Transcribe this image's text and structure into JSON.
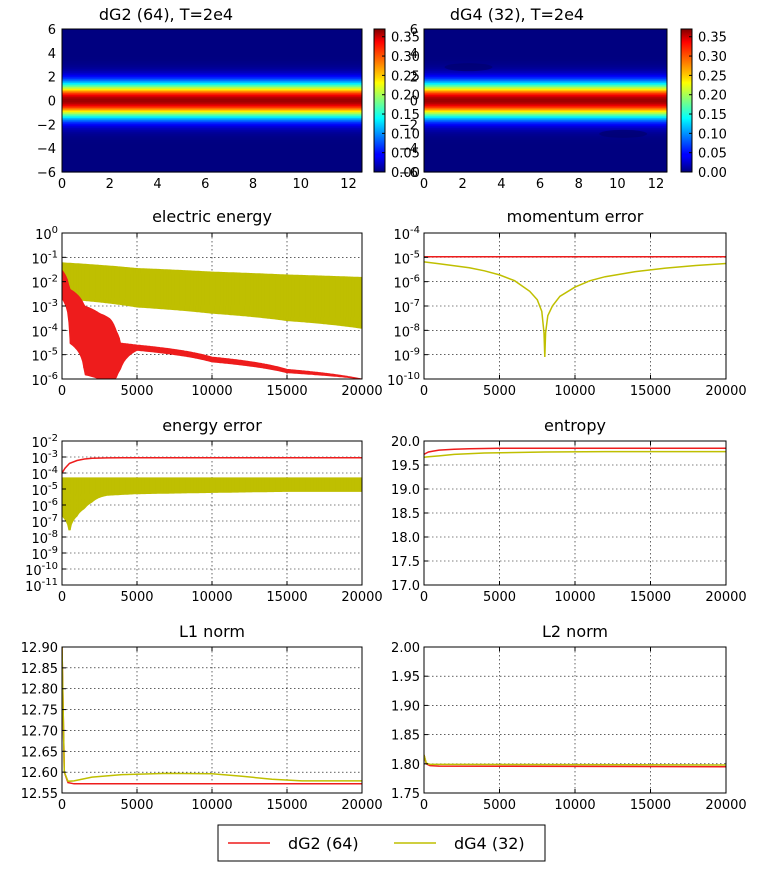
{
  "legend": [
    {
      "label": "dG2 (64)",
      "color": "#ee1c1c"
    },
    {
      "label": "dG4 (32)",
      "color": "#bfbf00"
    }
  ],
  "chart_data": [
    {
      "type": "heatmap",
      "title": "dG2 (64), T=2e4",
      "xlim": [
        0,
        12.566
      ],
      "ylim": [
        -6,
        6
      ],
      "xticks": [
        "0",
        "2",
        "4",
        "6",
        "8",
        "10",
        "12"
      ],
      "yticks": [
        "6",
        "4",
        "2",
        "0",
        "−2",
        "−4",
        "−6"
      ],
      "colorbar_range": [
        0,
        0.37
      ],
      "colorbar_ticks": [
        "0.35",
        "0.30",
        "0.25",
        "0.20",
        "0.15",
        "0.10",
        "0.05",
        "0.00"
      ],
      "peak_value": 0.36,
      "profile_width": 1.0,
      "holes": []
    },
    {
      "type": "heatmap",
      "title": "dG4 (32), T=2e4",
      "xlim": [
        0,
        12.566
      ],
      "ylim": [
        -6,
        6
      ],
      "xticks": [
        "0",
        "2",
        "4",
        "6",
        "8",
        "10",
        "12"
      ],
      "yticks": [
        "6",
        "4",
        "2",
        "0",
        "−2",
        "−4",
        "−6"
      ],
      "colorbar_range": [
        0,
        0.37
      ],
      "colorbar_ticks": [
        "0.35",
        "0.30",
        "0.25",
        "0.20",
        "0.15",
        "0.10",
        "0.05",
        "0.00"
      ],
      "peak_value": 0.36,
      "profile_width": 1.0,
      "holes": [
        {
          "x": 2.3,
          "v": 2.8
        },
        {
          "x": 10.3,
          "v": -2.8
        }
      ]
    },
    {
      "type": "line",
      "scale": "log",
      "title": "electric energy",
      "xlim": [
        0,
        20000
      ],
      "ylim_exp": [
        -6,
        0
      ],
      "xticks": [
        "0",
        "5000",
        "10000",
        "15000",
        "20000"
      ],
      "yticks": [
        {
          "base": "10",
          "exp": "0"
        },
        {
          "base": "10",
          "exp": "-1"
        },
        {
          "base": "10",
          "exp": "-2"
        },
        {
          "base": "10",
          "exp": "-3"
        },
        {
          "base": "10",
          "exp": "-4"
        },
        {
          "base": "10",
          "exp": "-5"
        },
        {
          "base": "10",
          "exp": "-6"
        }
      ],
      "series": [
        {
          "name": "dG4 (32)",
          "kind": "band",
          "x": [
            0,
            5000,
            10000,
            15000,
            20000
          ],
          "upper": [
            0.06,
            0.035,
            0.025,
            0.019,
            0.015
          ],
          "lower": [
            0.002,
            0.0009,
            0.0005,
            0.00025,
            0.00012
          ]
        },
        {
          "name": "dG2 (64)",
          "kind": "band",
          "x": [
            0,
            500,
            1500,
            2500,
            3200,
            3600,
            3900,
            5000,
            10000,
            15000,
            20000
          ],
          "upper": [
            0.03,
            0.005,
            0.001,
            0.0005,
            0.0003,
            0.0001,
            3e-05,
            2.5e-05,
            8e-06,
            2.5e-06,
            1e-06
          ],
          "lower": [
            0.002,
            3e-05,
            1.5e-06,
            1e-06,
            1e-06,
            1e-06,
            2.5e-06,
            1.5e-05,
            5e-06,
            1.8e-06,
            1e-06
          ]
        }
      ]
    },
    {
      "type": "line",
      "scale": "log",
      "title": "momentum error",
      "xlim": [
        0,
        20000
      ],
      "ylim_exp": [
        -10,
        -4
      ],
      "xticks": [
        "0",
        "5000",
        "10000",
        "15000",
        "20000"
      ],
      "yticks": [
        {
          "base": "10",
          "exp": "-4"
        },
        {
          "base": "10",
          "exp": "-5"
        },
        {
          "base": "10",
          "exp": "-6"
        },
        {
          "base": "10",
          "exp": "-7"
        },
        {
          "base": "10",
          "exp": "-8"
        },
        {
          "base": "10",
          "exp": "-9"
        },
        {
          "base": "10",
          "exp": "-10"
        }
      ],
      "series": [
        {
          "name": "dG2 (64)",
          "x": [
            0,
            20000
          ],
          "y": [
            1.05e-05,
            1.05e-05
          ]
        },
        {
          "name": "dG4 (32)",
          "x": [
            0,
            1000,
            2000,
            3000,
            4000,
            5000,
            6000,
            7000,
            7500,
            7800,
            7950,
            8000,
            8050,
            8200,
            8500,
            9000,
            10000,
            11000,
            12000,
            14000,
            16000,
            18000,
            20000
          ],
          "y": [
            6.5e-06,
            5.5e-06,
            4.5e-06,
            3.7e-06,
            2.8e-06,
            1.9e-06,
            1.1e-06,
            4e-07,
            1.8e-07,
            6e-08,
            8e-09,
            8e-10,
            8e-09,
            4e-08,
            1e-07,
            2.5e-07,
            6e-07,
            1.1e-06,
            1.6e-06,
            2.6e-06,
            3.6e-06,
            4.6e-06,
            5.6e-06
          ]
        }
      ]
    },
    {
      "type": "line",
      "scale": "log",
      "title": "energy error",
      "xlim": [
        0,
        20000
      ],
      "ylim_exp": [
        -11,
        -2
      ],
      "xticks": [
        "0",
        "5000",
        "10000",
        "15000",
        "20000"
      ],
      "yticks": [
        {
          "base": "10",
          "exp": "-2"
        },
        {
          "base": "10",
          "exp": "-3"
        },
        {
          "base": "10",
          "exp": "-4"
        },
        {
          "base": "10",
          "exp": "-5"
        },
        {
          "base": "10",
          "exp": "-6"
        },
        {
          "base": "10",
          "exp": "-7"
        },
        {
          "base": "10",
          "exp": "-8"
        },
        {
          "base": "10",
          "exp": "-9"
        },
        {
          "base": "10",
          "exp": "-10"
        },
        {
          "base": "10",
          "exp": "-11"
        }
      ],
      "series": [
        {
          "name": "dG4 (32)",
          "kind": "band",
          "x": [
            0,
            500,
            1000,
            1500,
            2000,
            2500,
            3000,
            4000,
            5000,
            10000,
            15000,
            20000
          ],
          "upper": [
            5e-05,
            5e-05,
            5e-05,
            5e-05,
            5e-05,
            5e-05,
            5e-05,
            5e-05,
            5e-05,
            5e-05,
            5e-05,
            5e-05
          ],
          "lower": [
            2e-07,
            1e-08,
            2e-07,
            6e-07,
            1.5e-06,
            3e-06,
            4e-06,
            4.5e-06,
            5e-06,
            6e-06,
            7e-06,
            7e-06
          ]
        },
        {
          "name": "dG2 (64)",
          "x": [
            0,
            200,
            500,
            1000,
            1500,
            2000,
            3000,
            4000,
            5000,
            10000,
            20000
          ],
          "y": [
            0.0001,
            0.0002,
            0.0004,
            0.0006,
            0.00075,
            0.00083,
            0.00088,
            0.0009,
            0.0009,
            0.0009,
            0.0009
          ]
        }
      ]
    },
    {
      "type": "line",
      "scale": "linear",
      "title": "entropy",
      "xlim": [
        0,
        20000
      ],
      "ylim": [
        17.0,
        20.0
      ],
      "xticks": [
        "0",
        "5000",
        "10000",
        "15000",
        "20000"
      ],
      "yticks": [
        "20.0",
        "19.5",
        "19.0",
        "18.5",
        "18.0",
        "17.5",
        "17.0"
      ],
      "series": [
        {
          "name": "dG2 (64)",
          "x": [
            0,
            100,
            300,
            600,
            1000,
            2000,
            3000,
            5000,
            20000
          ],
          "y": [
            19.72,
            19.74,
            19.77,
            19.79,
            19.81,
            19.83,
            19.84,
            19.85,
            19.85
          ]
        },
        {
          "name": "dG4 (32)",
          "x": [
            0,
            300,
            1000,
            2000,
            4000,
            8000,
            12000,
            16000,
            20000
          ],
          "y": [
            19.66,
            19.67,
            19.69,
            19.72,
            19.75,
            19.77,
            19.78,
            19.78,
            19.78
          ]
        }
      ]
    },
    {
      "type": "line",
      "scale": "linear",
      "title": "L1 norm",
      "xlim": [
        0,
        20000
      ],
      "ylim": [
        12.55,
        12.9
      ],
      "xticks": [
        "0",
        "5000",
        "10000",
        "15000",
        "20000"
      ],
      "yticks": [
        "12.90",
        "12.85",
        "12.80",
        "12.75",
        "12.70",
        "12.65",
        "12.60",
        "12.55"
      ],
      "series": [
        {
          "name": "dG2 (64)",
          "x": [
            0,
            150,
            400,
            800,
            1500,
            20000
          ],
          "y": [
            12.9,
            12.6,
            12.575,
            12.572,
            12.572,
            12.572
          ]
        },
        {
          "name": "dG4 (32)",
          "x": [
            0,
            150,
            400,
            800,
            2000,
            4000,
            7000,
            10000,
            12000,
            14000,
            16000,
            18000,
            20000
          ],
          "y": [
            12.9,
            12.6,
            12.578,
            12.579,
            12.588,
            12.594,
            12.597,
            12.596,
            12.59,
            12.583,
            12.579,
            12.579,
            12.579
          ]
        }
      ]
    },
    {
      "type": "line",
      "scale": "linear",
      "title": "L2 norm",
      "xlim": [
        0,
        20000
      ],
      "ylim": [
        1.75,
        2.0
      ],
      "xticks": [
        "0",
        "5000",
        "10000",
        "15000",
        "20000"
      ],
      "yticks": [
        "2.00",
        "1.95",
        "1.90",
        "1.85",
        "1.80",
        "1.75"
      ],
      "series": [
        {
          "name": "dG2 (64)",
          "x": [
            0,
            150,
            400,
            1000,
            20000
          ],
          "y": [
            1.815,
            1.8,
            1.797,
            1.796,
            1.795
          ]
        },
        {
          "name": "dG4 (32)",
          "x": [
            0,
            150,
            400,
            1000,
            20000
          ],
          "y": [
            1.815,
            1.801,
            1.799,
            1.799,
            1.798
          ]
        }
      ]
    }
  ]
}
